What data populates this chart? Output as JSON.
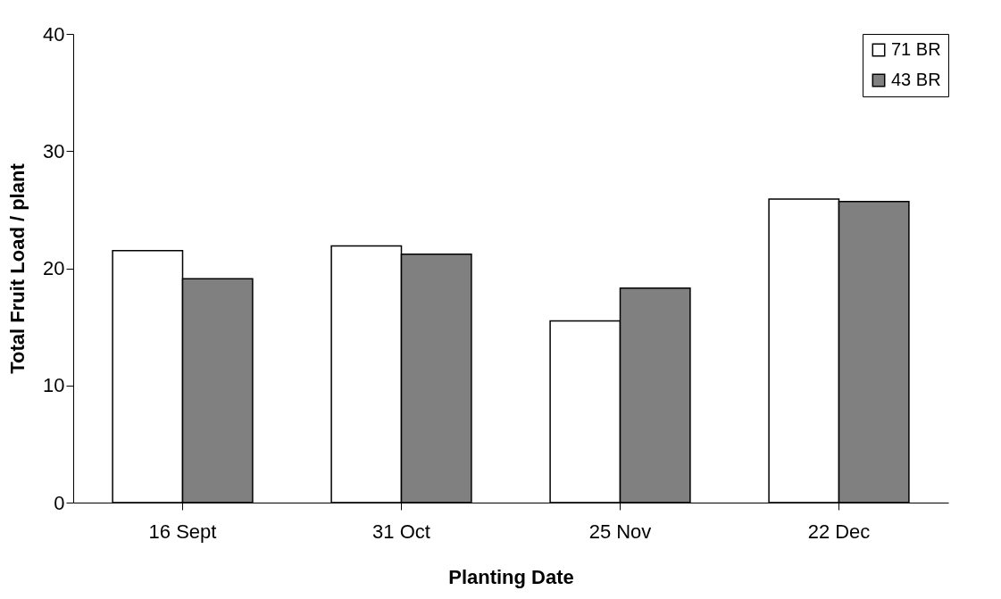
{
  "chart_data": {
    "type": "bar",
    "xlabel": "Planting Date",
    "ylabel": "Total Fruit Load / plant",
    "categories": [
      "16 Sept",
      "31 Oct",
      "25 Nov",
      "22 Dec"
    ],
    "series": [
      {
        "name": "71 BR",
        "color": "#ffffff",
        "values": [
          21.5,
          21.9,
          15.5,
          25.9
        ]
      },
      {
        "name": "43 BR",
        "color": "#808080",
        "values": [
          19.1,
          21.2,
          18.3,
          25.7
        ]
      }
    ],
    "ylim": [
      0,
      40
    ],
    "yticks": [
      0,
      10,
      20,
      30,
      40
    ],
    "grid": false,
    "legend": "top right"
  }
}
